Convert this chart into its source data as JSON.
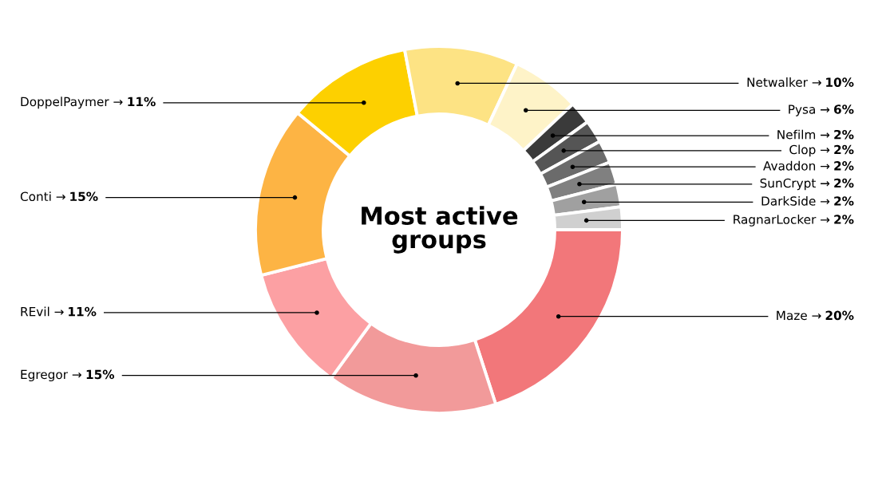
{
  "chart_data": {
    "type": "donut",
    "title": "Most active groups",
    "categories": [
      "Maze →",
      "Egregor →",
      "REvil →",
      "Conti →",
      "DoppelPaymer →",
      "Netwalker →",
      "Pysa →",
      "Nefilm →",
      "Clop →",
      "Avaddon →",
      "SunCrypt →",
      "DarkSide →",
      "RagnarLocker →"
    ],
    "values": [
      20,
      15,
      11,
      15,
      11,
      10,
      6,
      2,
      2,
      2,
      2,
      2,
      2
    ],
    "colors": [
      "#f2777a",
      "#f29a9a",
      "#fca0a3",
      "#fdb444",
      "#fdd000",
      "#fde384",
      "#fef3c8",
      "#3a3a3a",
      "#555555",
      "#6b6b6b",
      "#808080",
      "#a0a0a0",
      "#d0d0d0"
    ],
    "value_labels": [
      "20%",
      "15%",
      "11%",
      "15%",
      "11%",
      "10%",
      "6%",
      "2%",
      "2%",
      "2%",
      "2%",
      "2%",
      "2%"
    ],
    "legend": false
  }
}
